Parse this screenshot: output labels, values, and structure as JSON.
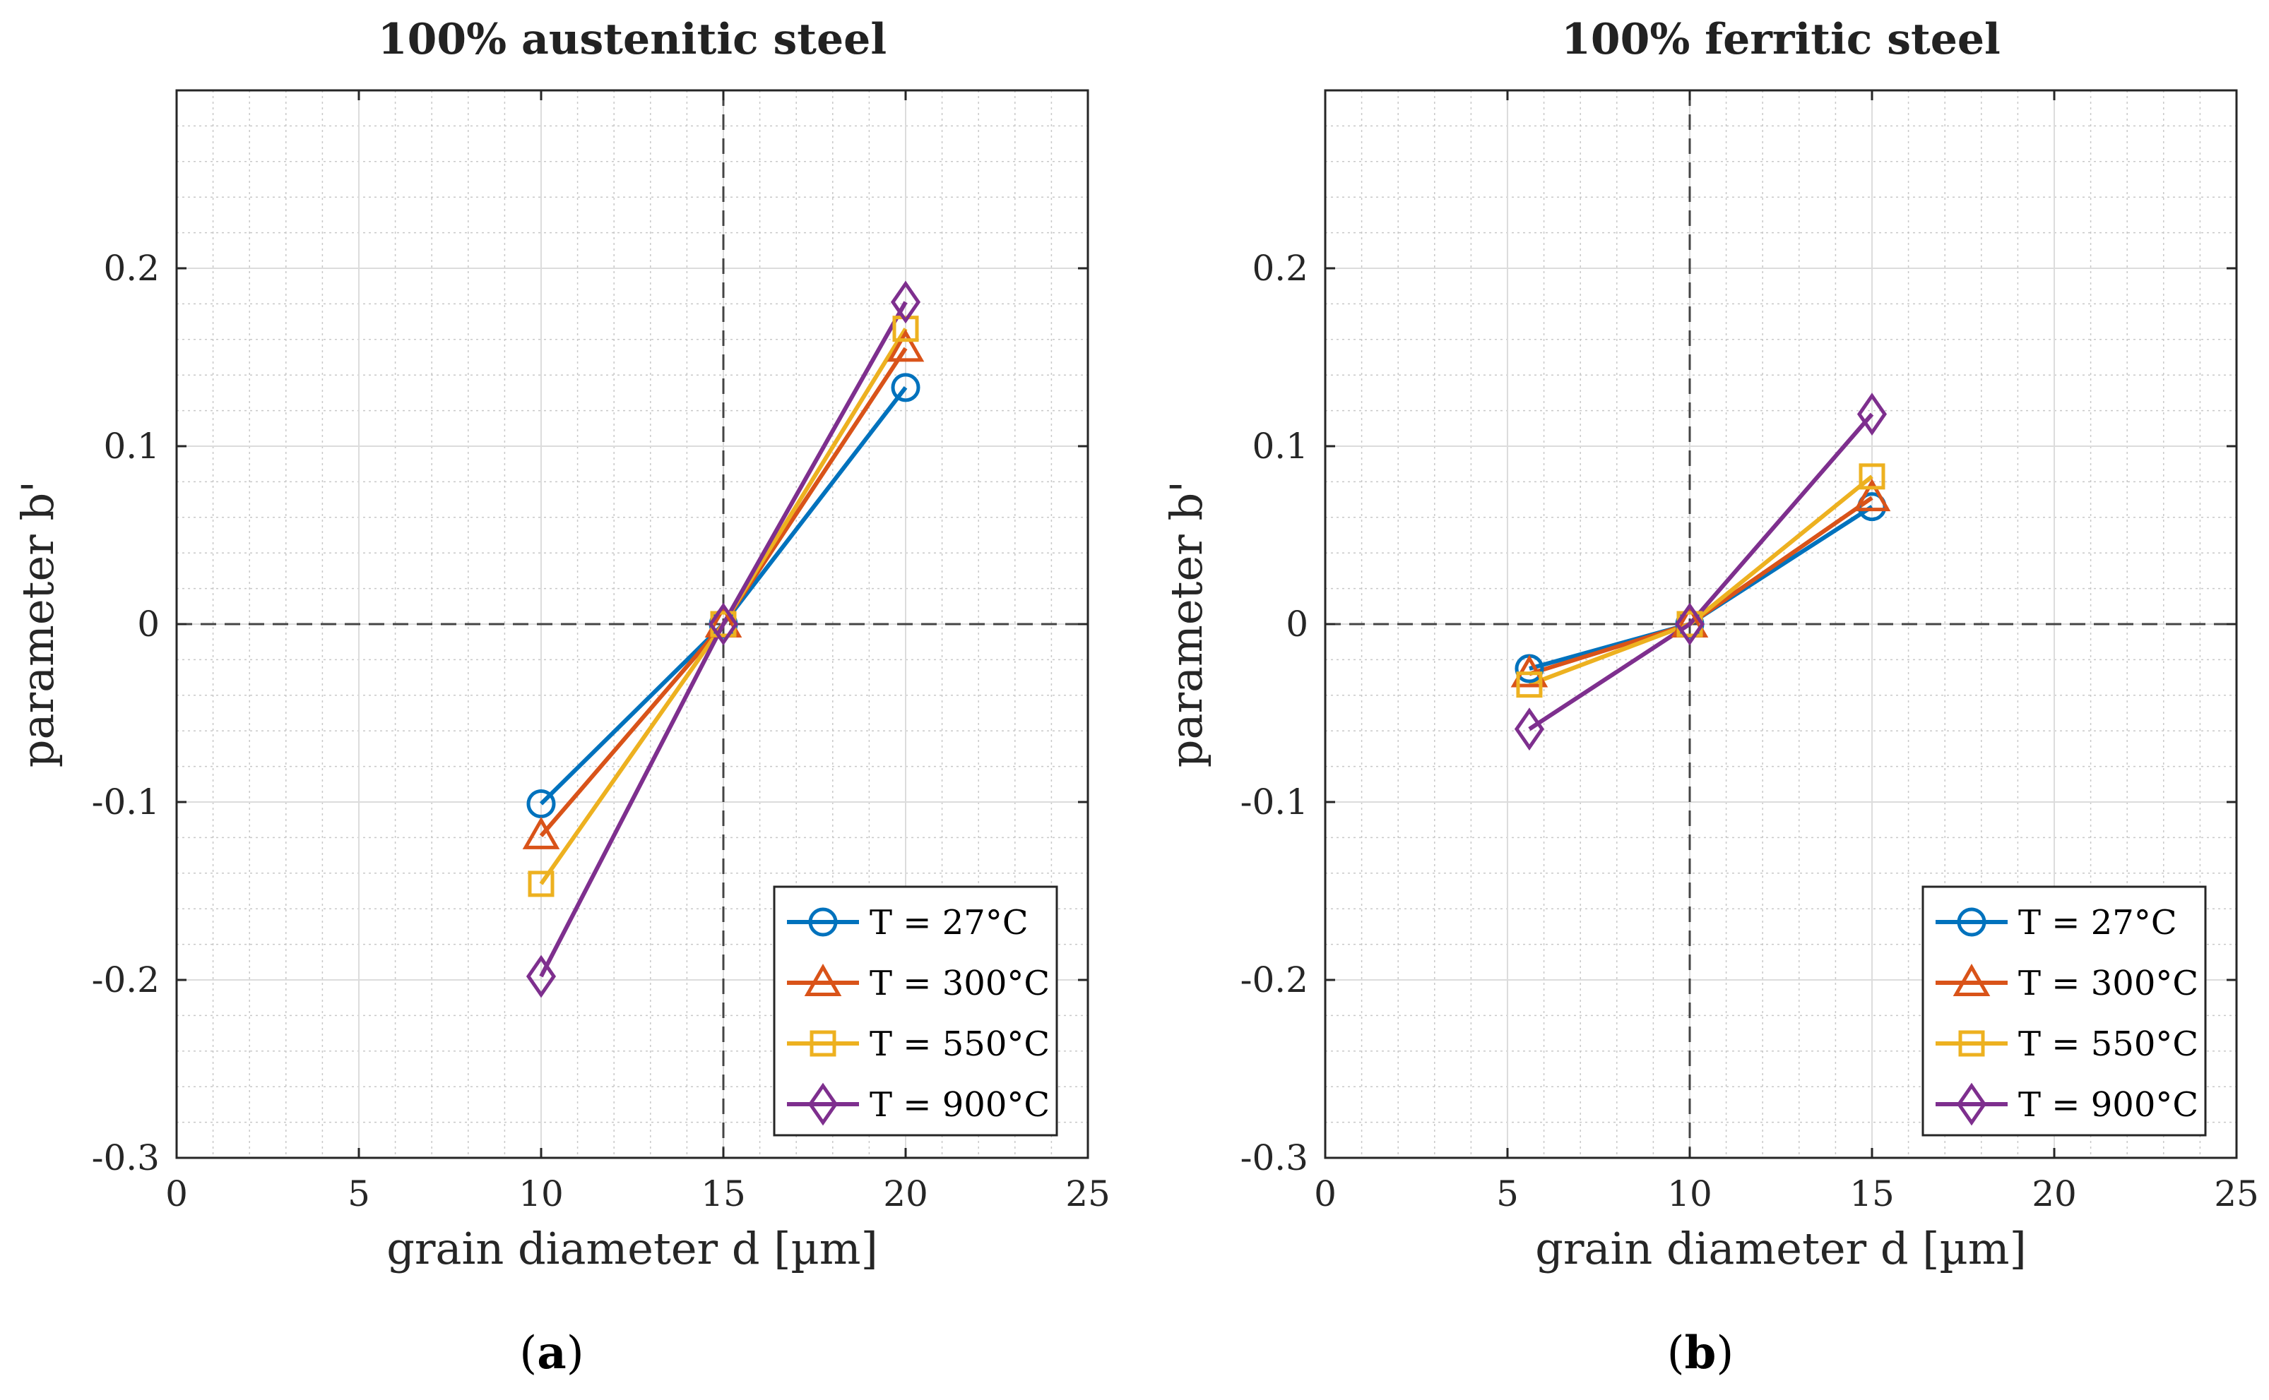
{
  "chart_data": [
    {
      "type": "line",
      "title": "100% austenitic steel",
      "xlabel": "grain diameter d [µm]",
      "ylabel": "parameter b'",
      "xlim": [
        0,
        25
      ],
      "ylim": [
        -0.3,
        0.3
      ],
      "xticks": [
        0,
        5,
        10,
        15,
        20,
        25
      ],
      "yticks": [
        -0.3,
        -0.2,
        -0.1,
        0,
        0.1,
        0.2
      ],
      "ytick_labels": [
        "-0.3",
        "-0.2",
        "-0.1",
        "0",
        "0.1",
        "0.2"
      ],
      "grid": true,
      "minor_grid": true,
      "reference_lines": {
        "x": 15,
        "y": 0
      },
      "legend_position": "bottom-right",
      "series": [
        {
          "name": "T = 27°C",
          "marker": "circle",
          "color": "#0072BD",
          "x": [
            10,
            15,
            20
          ],
          "y": [
            -0.101,
            0.0,
            0.133
          ]
        },
        {
          "name": "T = 300°C",
          "marker": "triangle",
          "color": "#D95319",
          "x": [
            10,
            15,
            20
          ],
          "y": [
            -0.119,
            0.0,
            0.155
          ]
        },
        {
          "name": "T = 550°C",
          "marker": "square",
          "color": "#EDB120",
          "x": [
            10,
            15,
            20
          ],
          "y": [
            -0.146,
            0.0,
            0.166
          ]
        },
        {
          "name": "T = 900°C",
          "marker": "diamond",
          "color": "#7E2F8E",
          "x": [
            10,
            15,
            20
          ],
          "y": [
            -0.198,
            0.0,
            0.181
          ]
        }
      ],
      "panel_label": {
        "open": "(",
        "letter": "a",
        "close": ")"
      }
    },
    {
      "type": "line",
      "title": "100% ferritic steel",
      "xlabel": "grain diameter d [µm]",
      "ylabel": "parameter b'",
      "xlim": [
        0,
        25
      ],
      "ylim": [
        -0.3,
        0.3
      ],
      "xticks": [
        0,
        5,
        10,
        15,
        20,
        25
      ],
      "yticks": [
        -0.3,
        -0.2,
        -0.1,
        0,
        0.1,
        0.2
      ],
      "ytick_labels": [
        "-0.3",
        "-0.2",
        "-0.1",
        "0",
        "0.1",
        "0.2"
      ],
      "grid": true,
      "minor_grid": true,
      "reference_lines": {
        "x": 10,
        "y": 0
      },
      "legend_position": "bottom-right",
      "series": [
        {
          "name": "T = 27°C",
          "marker": "circle",
          "color": "#0072BD",
          "x": [
            5.6,
            10,
            15
          ],
          "y": [
            -0.025,
            0.0,
            0.066
          ]
        },
        {
          "name": "T = 300°C",
          "marker": "triangle",
          "color": "#D95319",
          "x": [
            5.6,
            10,
            15
          ],
          "y": [
            -0.028,
            0.0,
            0.071
          ]
        },
        {
          "name": "T = 550°C",
          "marker": "square",
          "color": "#EDB120",
          "x": [
            5.6,
            10,
            15
          ],
          "y": [
            -0.034,
            0.0,
            0.083
          ]
        },
        {
          "name": "T = 900°C",
          "marker": "diamond",
          "color": "#7E2F8E",
          "x": [
            5.6,
            10,
            15
          ],
          "y": [
            -0.059,
            0.0,
            0.118
          ]
        }
      ],
      "panel_label": {
        "open": "(",
        "letter": "b",
        "close": ")"
      }
    }
  ]
}
